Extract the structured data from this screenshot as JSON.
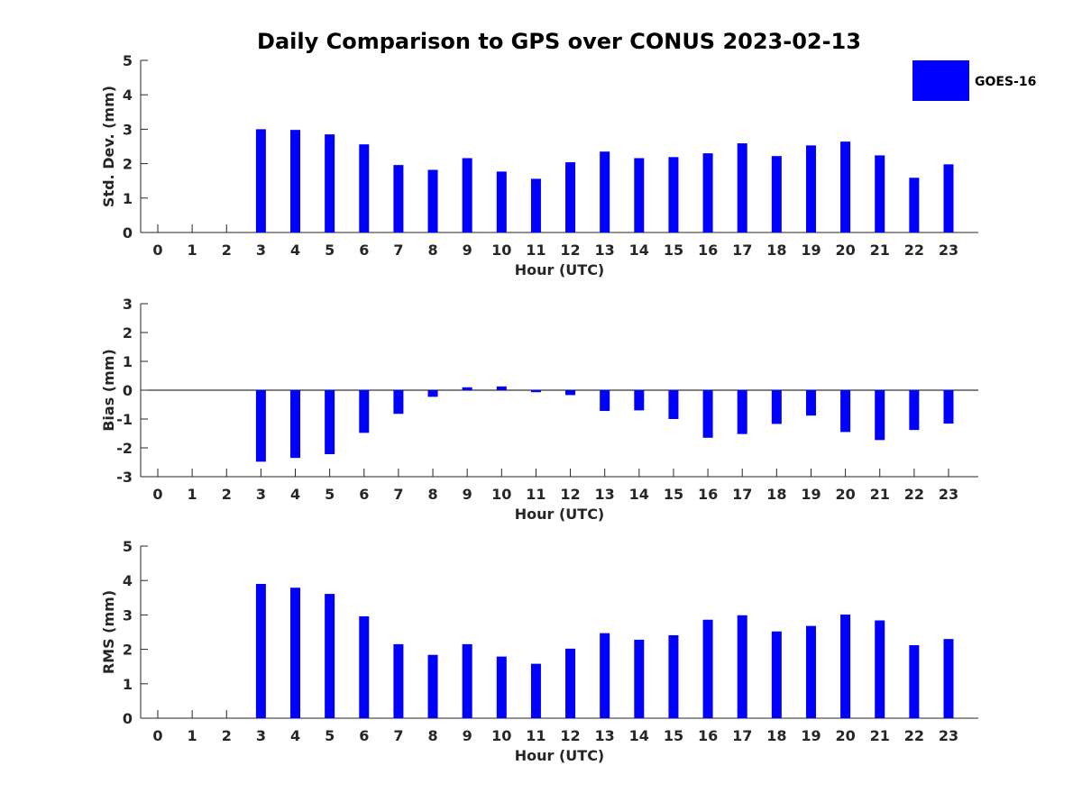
{
  "figure": {
    "title": "Daily Comparison to GPS over CONUS 2023-02-13",
    "legend": {
      "label": "GOES-16",
      "color": "#0000ff",
      "placement": "top-right"
    }
  },
  "chart_data": [
    {
      "type": "bar",
      "title": "Daily Comparison to GPS over CONUS 2023-02-13",
      "xlabel": "Hour (UTC)",
      "ylabel": "Std. Dev. (mm)",
      "categories": [
        "0",
        "1",
        "2",
        "3",
        "4",
        "5",
        "6",
        "7",
        "8",
        "9",
        "10",
        "11",
        "12",
        "13",
        "14",
        "15",
        "16",
        "17",
        "18",
        "19",
        "20",
        "21",
        "22",
        "23"
      ],
      "ylim": [
        0,
        5
      ],
      "yticks": [
        "0",
        "1",
        "2",
        "3",
        "4",
        "5"
      ],
      "series": [
        {
          "name": "GOES-16",
          "color": "#0000ff",
          "values": [
            null,
            null,
            null,
            3.0,
            2.98,
            2.85,
            2.56,
            1.96,
            1.82,
            2.16,
            1.77,
            1.56,
            2.04,
            2.35,
            2.16,
            2.19,
            2.3,
            2.59,
            2.22,
            2.53,
            2.64,
            2.24,
            1.59,
            1.98
          ]
        }
      ],
      "grid": false
    },
    {
      "type": "bar",
      "xlabel": "Hour (UTC)",
      "ylabel": "Bias (mm)",
      "categories": [
        "0",
        "1",
        "2",
        "3",
        "4",
        "5",
        "6",
        "7",
        "8",
        "9",
        "10",
        "11",
        "12",
        "13",
        "14",
        "15",
        "16",
        "17",
        "18",
        "19",
        "20",
        "21",
        "22",
        "23"
      ],
      "ylim": [
        -3,
        3
      ],
      "yticks": [
        "-3",
        "-2",
        "-1",
        "0",
        "1",
        "2",
        "3"
      ],
      "series": [
        {
          "name": "GOES-16",
          "color": "#0000ff",
          "values": [
            null,
            null,
            null,
            -2.48,
            -2.35,
            -2.22,
            -1.48,
            -0.82,
            -0.23,
            0.1,
            0.13,
            -0.07,
            -0.17,
            -0.72,
            -0.7,
            -1.0,
            -1.65,
            -1.52,
            -1.17,
            -0.88,
            -1.45,
            -1.73,
            -1.38,
            -1.16
          ]
        }
      ],
      "grid": false
    },
    {
      "type": "bar",
      "xlabel": "Hour (UTC)",
      "ylabel": "RMS (mm)",
      "categories": [
        "0",
        "1",
        "2",
        "3",
        "4",
        "5",
        "6",
        "7",
        "8",
        "9",
        "10",
        "11",
        "12",
        "13",
        "14",
        "15",
        "16",
        "17",
        "18",
        "19",
        "20",
        "21",
        "22",
        "23"
      ],
      "ylim": [
        0,
        5
      ],
      "yticks": [
        "0",
        "1",
        "2",
        "3",
        "4",
        "5"
      ],
      "series": [
        {
          "name": "GOES-16",
          "color": "#0000ff",
          "values": [
            null,
            null,
            null,
            3.9,
            3.79,
            3.61,
            2.96,
            2.15,
            1.84,
            2.15,
            1.79,
            1.58,
            2.02,
            2.47,
            2.28,
            2.41,
            2.86,
            2.99,
            2.52,
            2.68,
            3.01,
            2.84,
            2.12,
            2.3
          ]
        }
      ],
      "grid": false
    }
  ]
}
